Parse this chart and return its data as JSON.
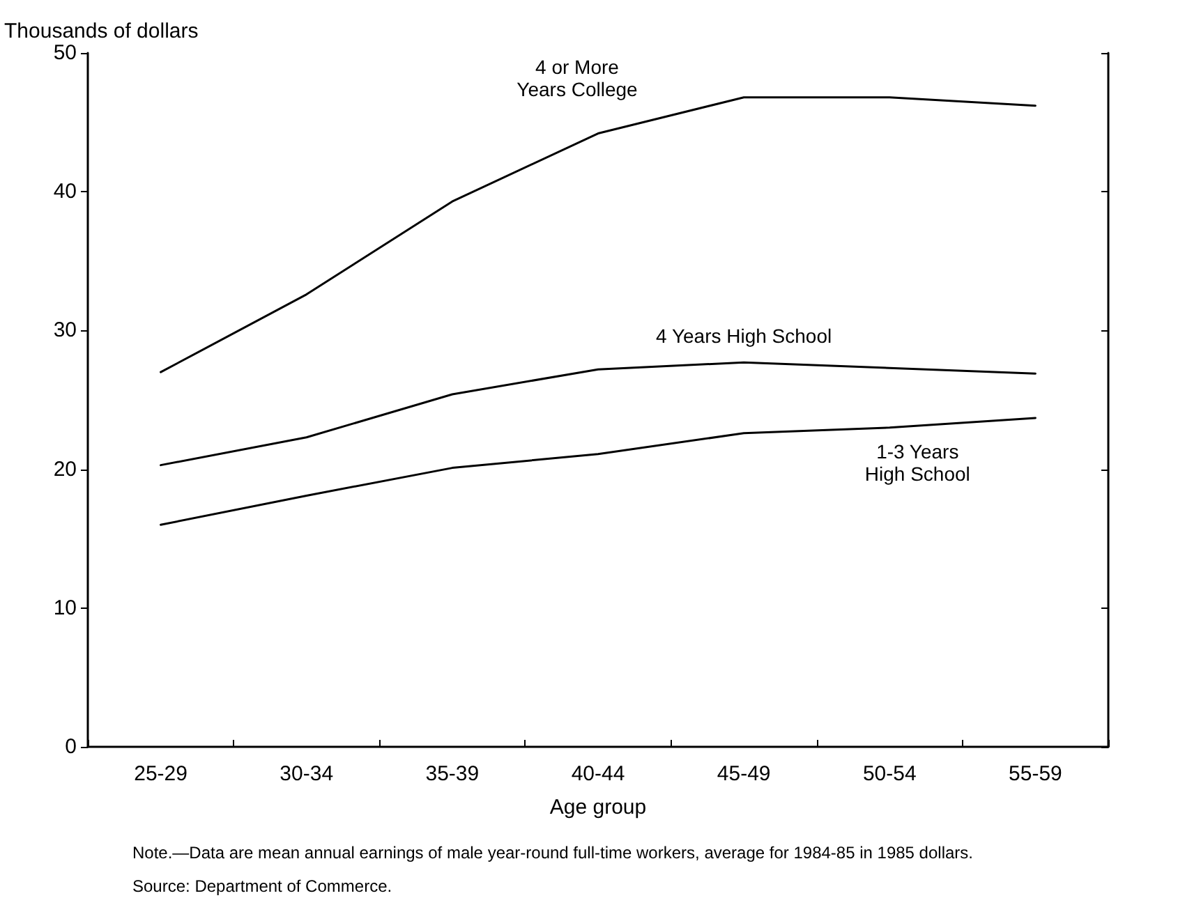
{
  "chart_data": {
    "type": "line",
    "ylabel": "Thousands of dollars",
    "xlabel": "Age group",
    "categories": [
      "25-29",
      "30-34",
      "35-39",
      "40-44",
      "45-49",
      "50-54",
      "55-59"
    ],
    "series": [
      {
        "name": "4 or More\nYears College",
        "color": "#000000",
        "values": [
          27.0,
          32.6,
          39.3,
          44.2,
          46.8,
          46.8,
          46.2
        ]
      },
      {
        "name": "4 Years High School",
        "color": "#000000",
        "values": [
          20.3,
          22.3,
          25.4,
          27.2,
          27.7,
          27.3,
          26.9
        ]
      },
      {
        "name": "1-3 Years\nHigh School",
        "color": "#000000",
        "values": [
          16.0,
          18.1,
          20.1,
          21.1,
          22.6,
          23.0,
          23.7
        ]
      }
    ],
    "ylim": [
      0,
      50
    ],
    "yticks": [
      0,
      10,
      20,
      30,
      40,
      50
    ],
    "grid": false,
    "legend": false,
    "marker": "none",
    "line_style": "solid",
    "annotations": [
      "Note.—Data are mean annual earnings of male year-round full-time workers, average for 1984-85 in 1985 dollars.",
      "Source: Department of Commerce."
    ]
  }
}
